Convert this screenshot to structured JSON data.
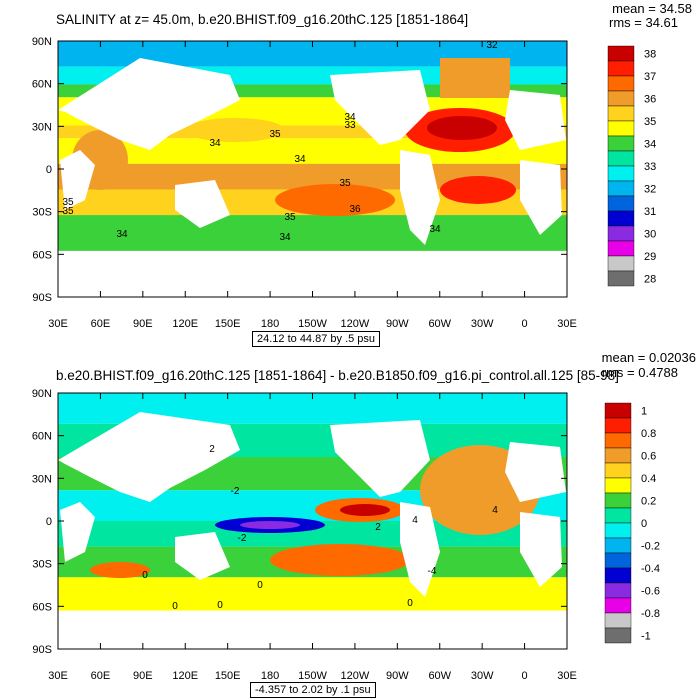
{
  "chart_data": [
    {
      "type": "heatmap",
      "title": "SALINITY at z=  45.0m, b.e20.BHIST.f09_g16.20thC.125 [1851-1864]",
      "mean_label": "mean = 34.58",
      "rms_label": "rms = 34.61",
      "range_label": "24.12 to 44.87 by .5 psu",
      "x_ticks": [
        "30E",
        "60E",
        "90E",
        "120E",
        "150E",
        "180",
        "150W",
        "120W",
        "90W",
        "60W",
        "30W",
        "0",
        "30E"
      ],
      "y_ticks": [
        "90N",
        "60N",
        "30N",
        "0",
        "30S",
        "60S",
        "90S"
      ],
      "colorbar": {
        "labels": [
          "38",
          "37",
          "36",
          "35",
          "34",
          "33",
          "32",
          "31",
          "30",
          "29",
          "28"
        ],
        "colors": [
          "#c80000",
          "#ff1e00",
          "#ff6a00",
          "#f09c2a",
          "#ffd21e",
          "#ffff00",
          "#3ad13a",
          "#00e6a0",
          "#00f0f0",
          "#00b4f0",
          "#0064dc",
          "#0000d2",
          "#8a2be2",
          "#e800e8",
          "#c8c8c8",
          "#6e6e6e"
        ]
      },
      "contour_labels": [
        "32",
        "33",
        "34",
        "34",
        "35",
        "35",
        "36",
        "34",
        "35",
        "34",
        "35",
        "34",
        "34",
        "35"
      ]
    },
    {
      "type": "heatmap",
      "title": "b.e20.BHIST.f09_g16.20thC.125 [1851-1864] - b.e20.B1850.f09_g16.pi_control.all.125 [85-98]",
      "mean_label": "mean = 0.02036",
      "rms_label": "rms = 0.4788",
      "range_label": "-4.357 to 2.02 by .1 psu",
      "x_ticks": [
        "30E",
        "60E",
        "90E",
        "120E",
        "150E",
        "180",
        "150W",
        "120W",
        "90W",
        "60W",
        "30W",
        "0",
        "30E"
      ],
      "y_ticks": [
        "90N",
        "60N",
        "30N",
        "0",
        "30S",
        "60S",
        "90S"
      ],
      "colorbar": {
        "labels": [
          "1",
          "0.8",
          "0.6",
          "0.4",
          "0.2",
          "0",
          "-0.2",
          "-0.4",
          "-0.6",
          "-0.8",
          "-1"
        ],
        "colors": [
          "#c80000",
          "#ff1e00",
          "#ff6a00",
          "#f09c2a",
          "#ffd21e",
          "#ffff00",
          "#3ad13a",
          "#00e6a0",
          "#00f0f0",
          "#00b4f0",
          "#0064dc",
          "#0000d2",
          "#8a2be2",
          "#e800e8",
          "#c8c8c8",
          "#6e6e6e"
        ]
      },
      "contour_labels": [
        "2",
        "4",
        "4",
        "2",
        "-2",
        "-2",
        "0",
        "0",
        "0",
        "0",
        "0",
        "-4"
      ]
    }
  ]
}
